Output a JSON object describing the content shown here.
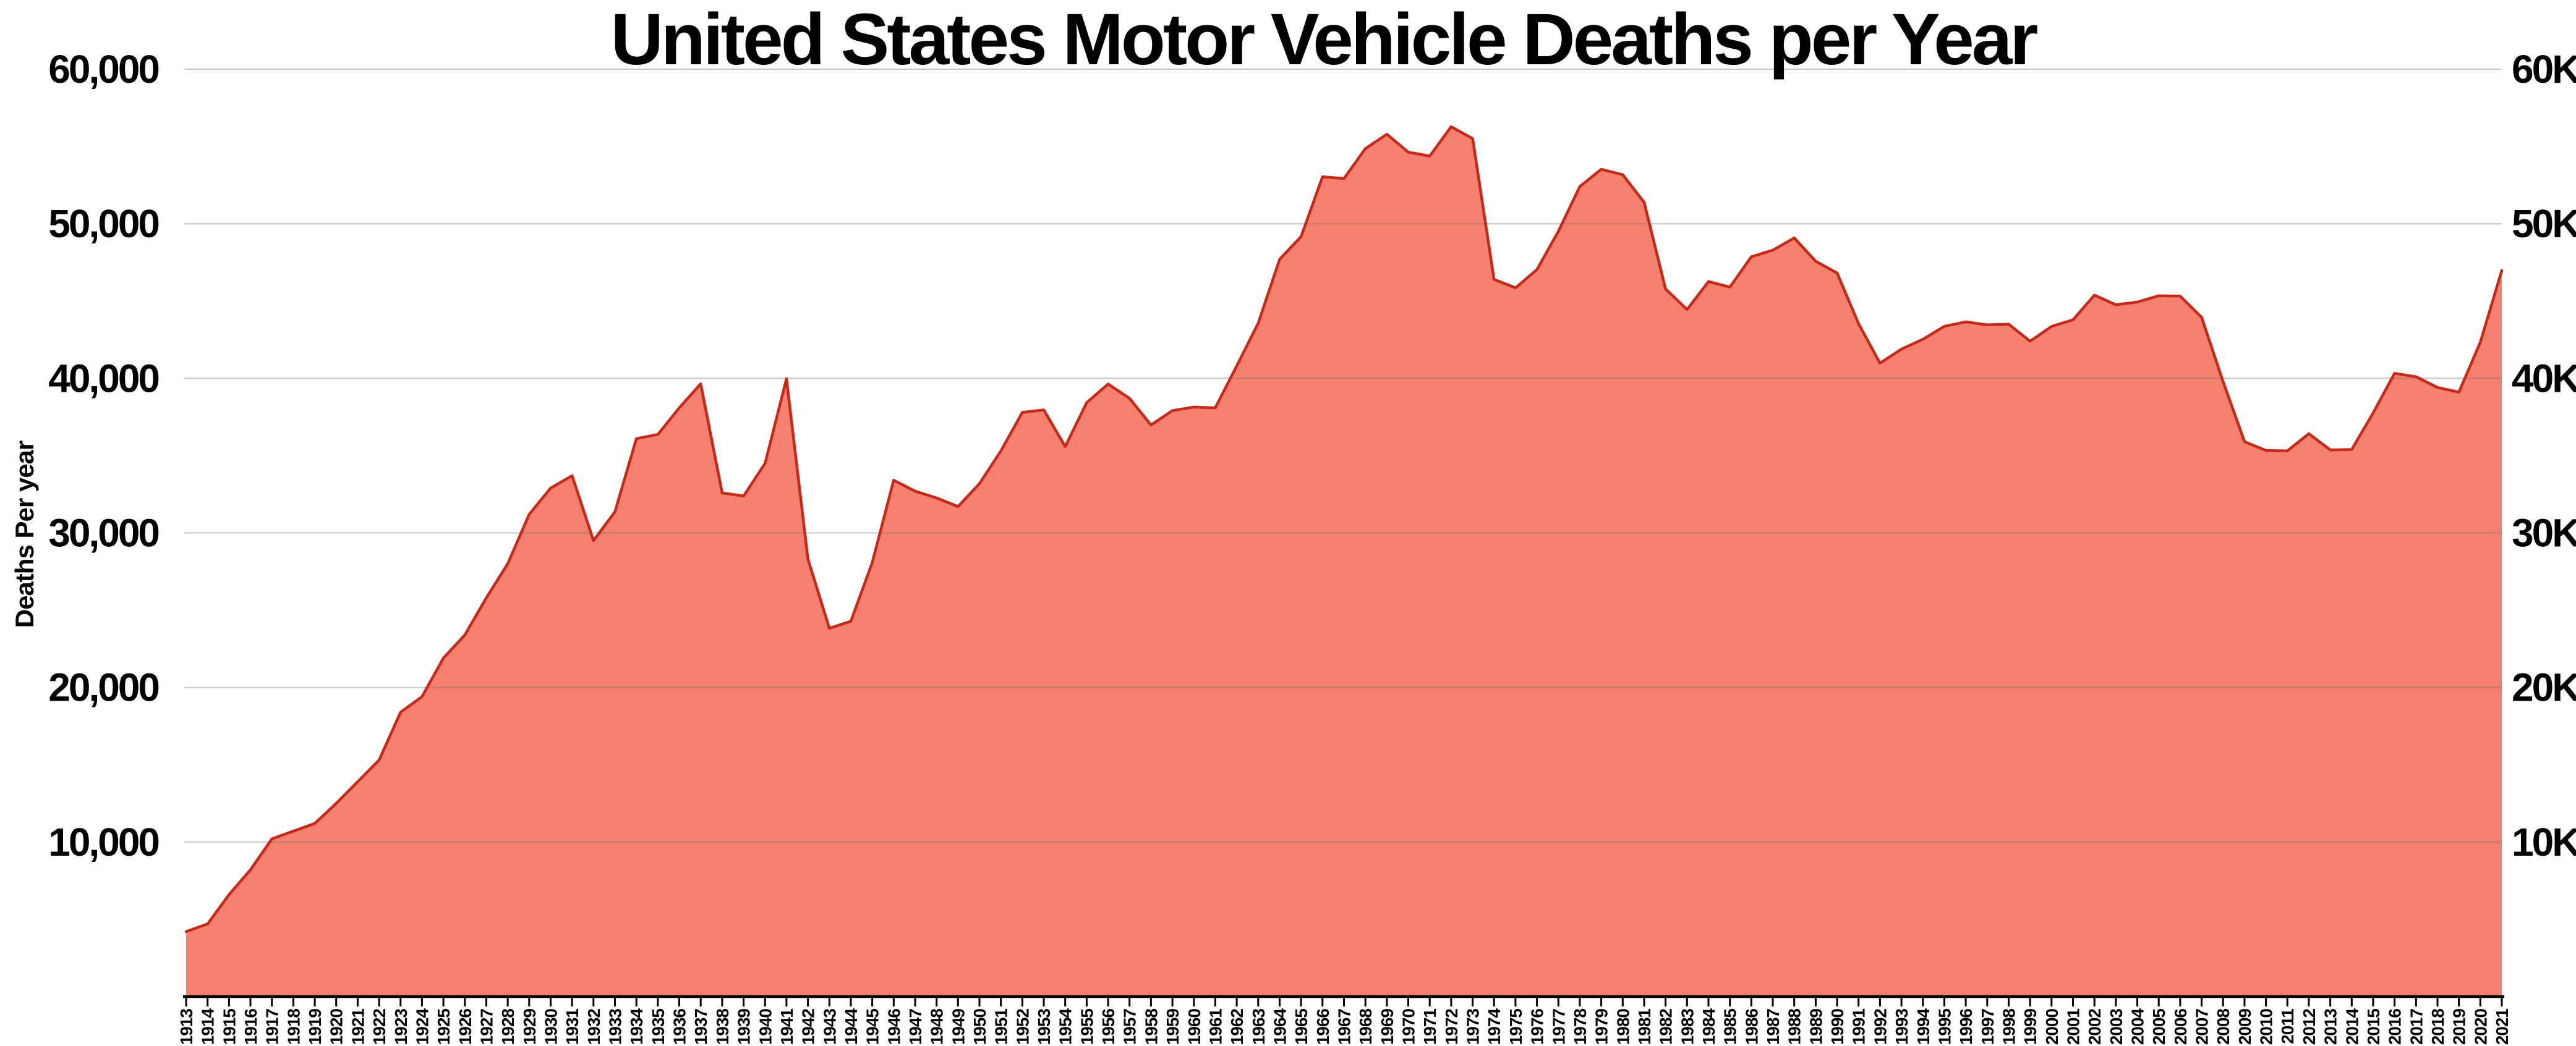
{
  "title": "United States Motor Vehicle Deaths per Year",
  "y_axis": {
    "label": "Deaths Per year",
    "tick_values": [
      60000,
      50000,
      40000,
      30000,
      20000,
      10000
    ],
    "left_tick_labels": [
      "60,000",
      "50,000",
      "40,000",
      "30,000",
      "20,000",
      "10,000"
    ],
    "right_tick_labels": [
      "60K",
      "50K",
      "40K",
      "30K",
      "20K",
      "10K"
    ]
  },
  "chart_data": {
    "type": "area",
    "title": "United States Motor Vehicle Deaths per Year",
    "xlabel": "",
    "ylabel": "Deaths Per year",
    "ylim": [
      0,
      60000
    ],
    "grid": true,
    "legend": "none",
    "x": [
      1913,
      1914,
      1915,
      1916,
      1917,
      1918,
      1919,
      1920,
      1921,
      1922,
      1923,
      1924,
      1925,
      1926,
      1927,
      1928,
      1929,
      1930,
      1931,
      1932,
      1933,
      1934,
      1935,
      1936,
      1937,
      1938,
      1939,
      1940,
      1941,
      1942,
      1943,
      1944,
      1945,
      1946,
      1947,
      1948,
      1949,
      1950,
      1951,
      1952,
      1953,
      1954,
      1955,
      1956,
      1957,
      1958,
      1959,
      1960,
      1961,
      1962,
      1963,
      1964,
      1965,
      1966,
      1967,
      1968,
      1969,
      1970,
      1971,
      1972,
      1973,
      1974,
      1975,
      1976,
      1977,
      1978,
      1979,
      1980,
      1981,
      1982,
      1983,
      1984,
      1985,
      1986,
      1987,
      1988,
      1989,
      1990,
      1991,
      1992,
      1993,
      1994,
      1995,
      1996,
      1997,
      1998,
      1999,
      2000,
      2001,
      2002,
      2003,
      2004,
      2005,
      2006,
      2007,
      2008,
      2009,
      2010,
      2011,
      2012,
      2013,
      2014,
      2015,
      2016,
      2017,
      2018,
      2019,
      2020,
      2021
    ],
    "values": [
      4200,
      4700,
      6600,
      8200,
      10200,
      10700,
      11200,
      12500,
      13900,
      15300,
      18400,
      19400,
      21900,
      23400,
      25800,
      28000,
      31200,
      32900,
      33700,
      29500,
      31363,
      36101,
      36369,
      38089,
      39643,
      32582,
      32386,
      34501,
      39969,
      28309,
      23823,
      24282,
      28076,
      33411,
      32697,
      32259,
      31701,
      33186,
      35309,
      37794,
      37956,
      35586,
      38426,
      39628,
      38702,
      36981,
      37910,
      38137,
      38091,
      40804,
      43564,
      47700,
      49163,
      53041,
      52924,
      54862,
      55791,
      54633,
      54381,
      56278,
      55511,
      46402,
      45853,
      47038,
      49510,
      52411,
      53524,
      53172,
      51385,
      45779,
      44452,
      46263,
      45901,
      47865,
      48290,
      49078,
      47575,
      46814,
      43536,
      40982,
      41893,
      42524,
      43363,
      43649,
      43458,
      43501,
      42401,
      43354,
      43788,
      45380,
      44757,
      44933,
      45343,
      45316,
      43945,
      39790,
      35900,
      35332,
      35303,
      36415,
      35369,
      35398,
      37757,
      40327,
      40100,
      39404,
      39107,
      42338,
      46980
    ],
    "colors": {
      "fill": "#f5806f",
      "stroke": "#c5291a",
      "grid": "#6e6e6e",
      "axis": "#000000",
      "text": "#000000",
      "background": "#ffffff"
    }
  }
}
